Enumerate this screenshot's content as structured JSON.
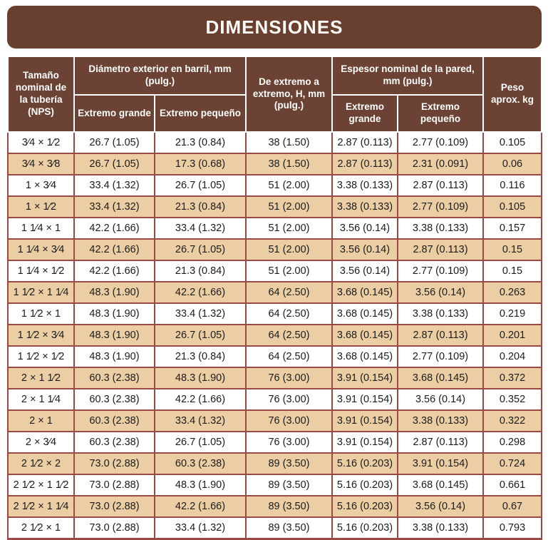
{
  "title": "DIMENSIONES",
  "colors": {
    "banner_brown": "#693F2F",
    "header_brown": "#6B4233",
    "row_tan": "#ECCEA4",
    "border_maroon": "#9A4A43",
    "text_dark": "#1b1b1b",
    "header_text": "#ffffff"
  },
  "table": {
    "headers": {
      "nps": "Tamaño nominal de la tubería (NPS)",
      "barrel_od_group": "Diámetro exterior en barril, mm (pulg.)",
      "barrel_od_large": "Extremo grande",
      "barrel_od_small": "Extremo pequeño",
      "end_to_end": "De extremo a extremo, H, mm (pulg.)",
      "wall_group": "Espesor nominal de la pared, mm (pulg.)",
      "wall_large": "Extremo grande",
      "wall_small": "Extremo pequeño",
      "weight": "Peso aprox. kg"
    },
    "rows": [
      [
        "3⁄4 × 1⁄2",
        "26.7 (1.05)",
        "21.3 (0.84)",
        "38 (1.50)",
        "2.87 (0.113)",
        "2.77 (0.109)",
        "0.105"
      ],
      [
        "3⁄4 × 3⁄8",
        "26.7 (1.05)",
        "17.3 (0.68)",
        "38 (1.50)",
        "2.87 (0.113)",
        "2.31 (0.091)",
        "0.06"
      ],
      [
        "1 × 3⁄4",
        "33.4 (1.32)",
        "26.7 (1.05)",
        "51 (2.00)",
        "3.38 (0.133)",
        "2.87 (0.113)",
        "0.116"
      ],
      [
        "1 × 1⁄2",
        "33.4 (1.32)",
        "21.3 (0.84)",
        "51 (2.00)",
        "3.38 (0.133)",
        "2.77 (0.109)",
        "0.105"
      ],
      [
        "1 1⁄4 × 1",
        "42.2 (1.66)",
        "33.4 (1.32)",
        "51 (2.00)",
        "3.56 (0.14)",
        "3.38 (0.133)",
        "0.157"
      ],
      [
        "1 1⁄4 × 3⁄4",
        "42.2 (1.66)",
        "26.7 (1.05)",
        "51 (2.00)",
        "3.56 (0.14)",
        "2.87 (0.113)",
        "0.15"
      ],
      [
        "1 1⁄4 × 1⁄2",
        "42.2 (1.66)",
        "21.3 (0.84)",
        "51 (2.00)",
        "3.56 (0.14)",
        "2.77 (0.109)",
        "0.15"
      ],
      [
        "1 1⁄2 × 1 1⁄4",
        "48.3 (1.90)",
        "42.2 (1.66)",
        "64 (2.50)",
        "3.68 (0.145)",
        "3.56 (0.14)",
        "0.263"
      ],
      [
        "1 1⁄2 × 1",
        "48.3 (1.90)",
        "33.4 (1.32)",
        "64 (2.50)",
        "3.68 (0.145)",
        "3.38 (0.133)",
        "0.219"
      ],
      [
        "1 1⁄2 × 3⁄4",
        "48.3 (1.90)",
        "26.7 (1.05)",
        "64 (2.50)",
        "3.68 (0.145)",
        "2.87 (0.113)",
        "0.201"
      ],
      [
        "1 1⁄2 × 1⁄2",
        "48.3 (1.90)",
        "21.3 (0.84)",
        "64 (2.50)",
        "3.68 (0.145)",
        "2.77 (0.109)",
        "0.204"
      ],
      [
        "2 × 1 1⁄2",
        "60.3 (2.38)",
        "48.3 (1.90)",
        "76 (3.00)",
        "3.91 (0.154)",
        "3.68 (0.145)",
        "0.372"
      ],
      [
        "2 × 1 1⁄4",
        "60.3 (2.38)",
        "42.2 (1.66)",
        "76 (3.00)",
        "3.91 (0.154)",
        "3.56 (0.14)",
        "0.352"
      ],
      [
        "2 × 1",
        "60.3 (2.38)",
        "33.4 (1.32)",
        "76 (3.00)",
        "3.91 (0.154)",
        "3.38 (0.133)",
        "0.322"
      ],
      [
        "2 × 3⁄4",
        "60.3 (2.38)",
        "26.7 (1.05)",
        "76 (3.00)",
        "3.91 (0.154)",
        "2.87 (0.113)",
        "0.298"
      ],
      [
        "2 1⁄2 × 2",
        "73.0 (2.88)",
        "60.3 (2.38)",
        "89 (3.50)",
        "5.16 (0.203)",
        "3.91 (0.154)",
        "0.724"
      ],
      [
        "2 1⁄2 × 1 1⁄2",
        "73.0 (2.88)",
        "48.3 (1.90)",
        "89 (3.50)",
        "5.16 (0.203)",
        "3.68 (0.145)",
        "0.661"
      ],
      [
        "2 1⁄2 × 1 1⁄4",
        "73.0 (2.88)",
        "42.2 (1.66)",
        "89 (3.50)",
        "5.16 (0.203)",
        "3.56 (0.14)",
        "0.67"
      ],
      [
        "2 1⁄2 × 1",
        "73.0 (2.88)",
        "33.4 (1.32)",
        "89 (3.50)",
        "5.16 (0.203)",
        "3.38 (0.133)",
        "0.793"
      ]
    ]
  }
}
